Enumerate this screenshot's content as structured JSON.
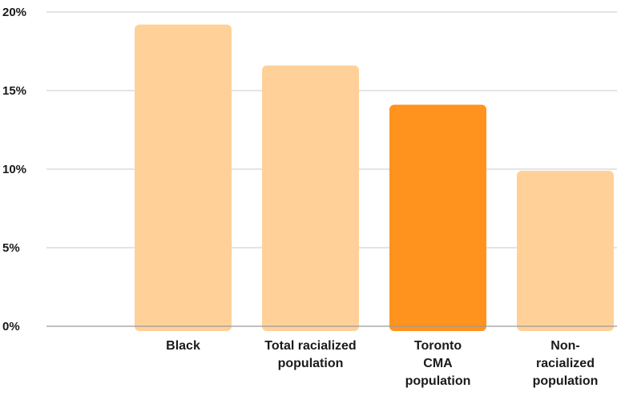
{
  "chart_data": {
    "type": "bar",
    "categories": [
      [
        "Black"
      ],
      [
        "Total racialized",
        "population"
      ],
      [
        "Toronto",
        "CMA",
        "population"
      ],
      [
        "Non-",
        "racialized",
        "population"
      ]
    ],
    "values": [
      19.2,
      16.6,
      14.1,
      9.9
    ],
    "highlight_index": 2,
    "colors": {
      "default": "#FFD199",
      "highlight": "#FF931E"
    },
    "yticks": [
      "20%",
      "15%",
      "10%",
      "5%",
      "0%"
    ],
    "ylim": [
      0,
      20
    ],
    "grid": true
  }
}
